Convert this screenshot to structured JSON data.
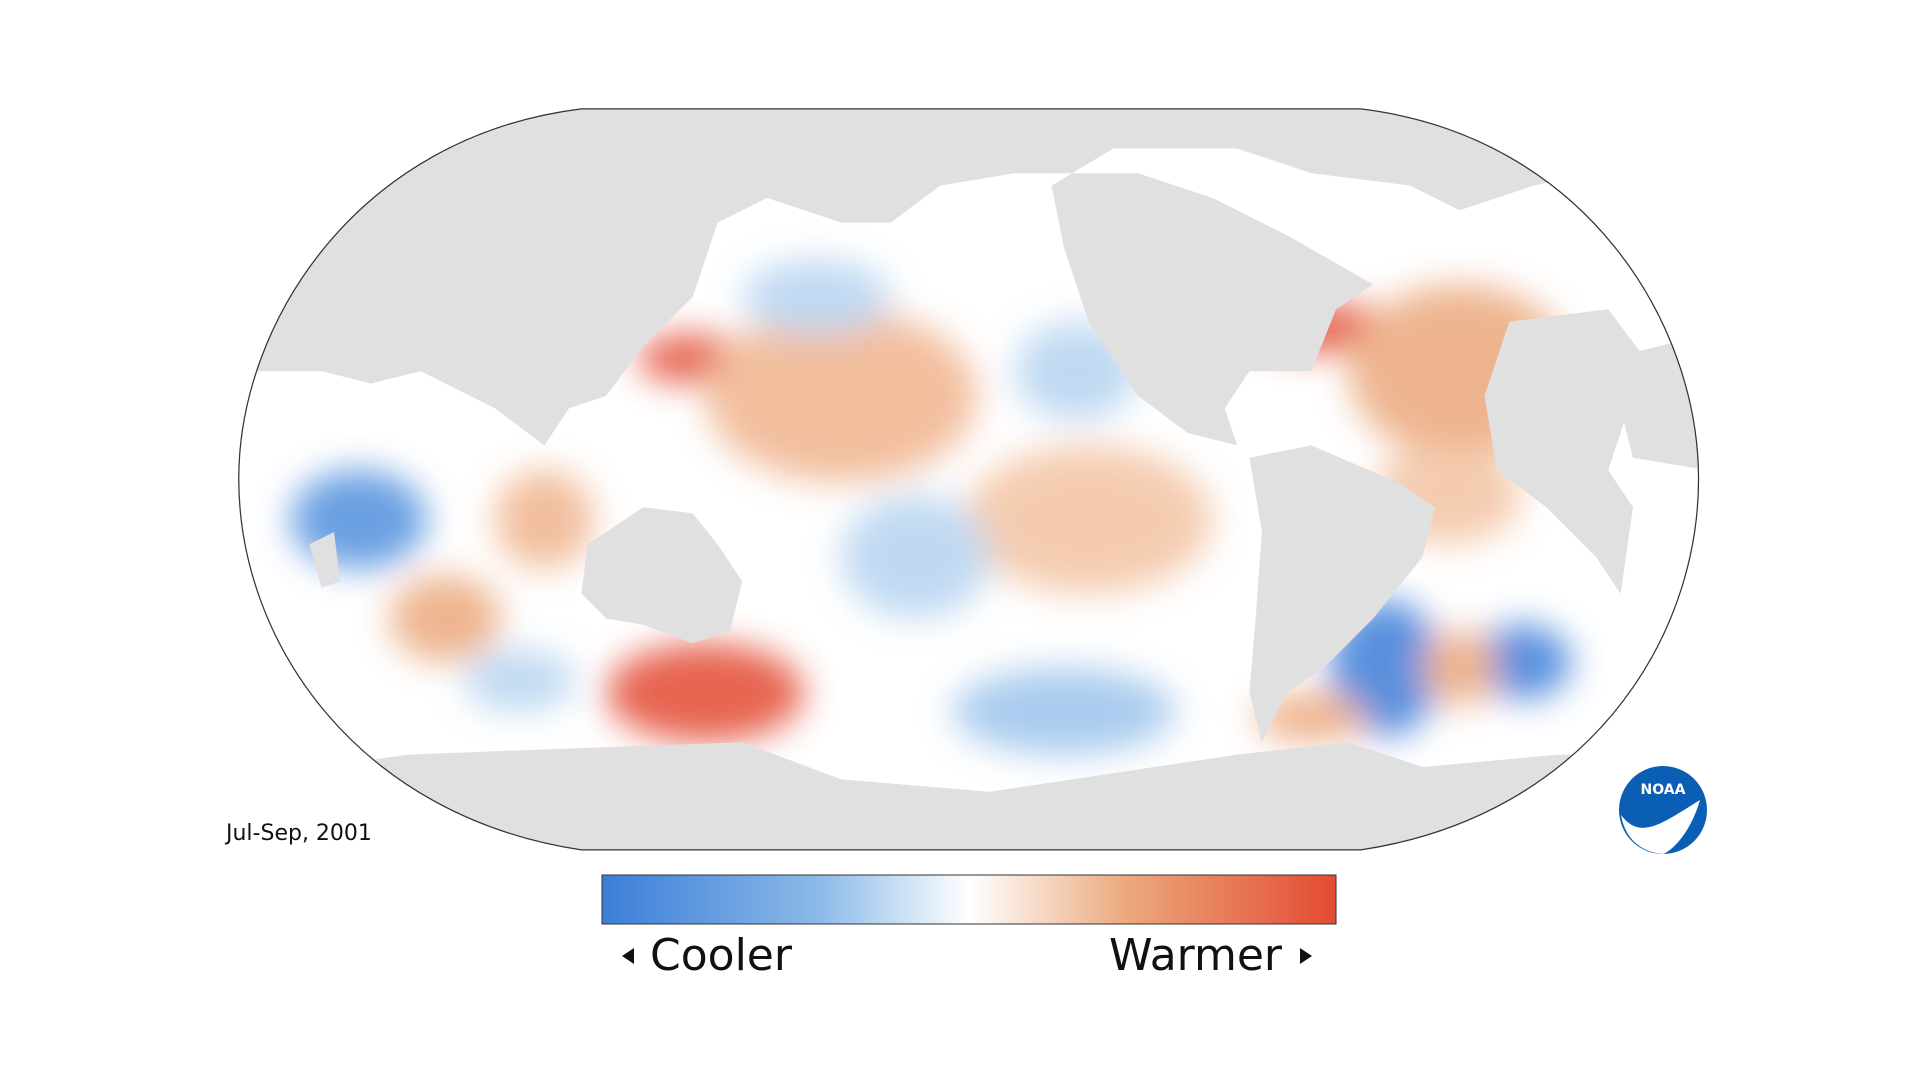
{
  "map": {
    "period": "Jul-Sep, 2001",
    "legend": {
      "low": "Cooler",
      "high": "Warmer"
    },
    "logo": "NOAA"
  }
}
